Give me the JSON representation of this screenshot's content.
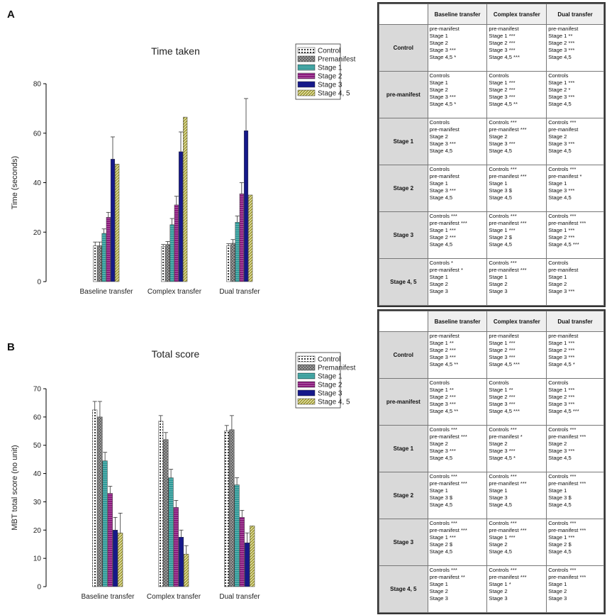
{
  "panels": [
    {
      "label": "A",
      "chart_data": {
        "type": "bar",
        "title": "Time taken",
        "xlabel": "",
        "ylabel": "Time (seconds)",
        "ylim": [
          0,
          80
        ],
        "yticks": [
          0,
          20,
          40,
          60,
          80
        ],
        "categories": [
          "Baseline transfer",
          "Complex transfer",
          "Dual transfer"
        ],
        "series": [
          {
            "name": "Control",
            "values": [
              14.5,
              14.2,
              14.5
            ],
            "errors": [
              1.5,
              0.8,
              0.8
            ],
            "color": "#ffffff",
            "pattern": "dots"
          },
          {
            "name": "Premanifest",
            "values": [
              14.5,
              15.0,
              15.5
            ],
            "errors": [
              1.5,
              1.2,
              1.5
            ],
            "color": "#a9a9a9",
            "pattern": "cross"
          },
          {
            "name": "Stage 1",
            "values": [
              19.5,
              23.0,
              24.0
            ],
            "errors": [
              1.8,
              2.5,
              2.5
            ],
            "color": "#2f9a98",
            "pattern": "hlines"
          },
          {
            "name": "Stage 2",
            "values": [
              26.0,
              31.0,
              35.5
            ],
            "errors": [
              2.0,
              3.5,
              4.5
            ],
            "color": "#8b1a7e",
            "pattern": "hlines"
          },
          {
            "name": "Stage 3",
            "values": [
              49.5,
              52.5,
              61.0
            ],
            "errors": [
              9.0,
              8.0,
              13.0
            ],
            "color": "#16198a",
            "pattern": "none"
          },
          {
            "name": "Stage 4, 5",
            "values": [
              47.5,
              66.5,
              35.0
            ],
            "errors": [
              0,
              0,
              0
            ],
            "color": "#a4a03a",
            "pattern": "diag"
          }
        ]
      },
      "table": {
        "headers": [
          "Baseline transfer",
          "Complex transfer",
          "Dual transfer"
        ],
        "rows": [
          {
            "name": "Control",
            "cells": [
              [
                "pre-manifest",
                "Stage 1",
                "Stage 2",
                "Stage 3 ***",
                "Stage 4,5 *"
              ],
              [
                "pre-manifest",
                "Stage 1 ***",
                "Stage 2 ***",
                "Stage 3 ***",
                "Stage 4,5 ***"
              ],
              [
                "pre-manifest",
                "Stage 1 **",
                "Stage 2 ***",
                "Stage 3 ***",
                "Stage 4,5"
              ]
            ]
          },
          {
            "name": "pre-manifest",
            "cells": [
              [
                "Controls",
                "Stage 1",
                "Stage 2",
                "Stage 3 ***",
                "Stage 4,5 *"
              ],
              [
                "Controls",
                "Stage 1 ***",
                "Stage 2 ***",
                "Stage 3 ***",
                "Stage 4,5 **"
              ],
              [
                "Controls",
                "Stage 1 ***",
                "Stage 2 *",
                "Stage 3 ***",
                "Stage 4,5"
              ]
            ]
          },
          {
            "name": "Stage 1",
            "cells": [
              [
                "Controls",
                "pre-manifest",
                "Stage 2",
                "Stage 3 ***",
                "Stage 4,5"
              ],
              [
                "Controls ***",
                "pre-manifest ***",
                "Stage 2",
                "Stage 3 ***",
                "Stage 4,5"
              ],
              [
                "Controls ***",
                "pre-manifest",
                "Stage 2",
                "Stage 3 ***",
                "Stage 4,5"
              ]
            ]
          },
          {
            "name": "Stage 2",
            "cells": [
              [
                "Controls",
                "pre-manifest",
                "Stage 1",
                "Stage 3 ***",
                "Stage 4,5"
              ],
              [
                "Controls ***",
                "pre-manifest ***",
                "Stage 1",
                "Stage 3 $",
                "Stage 4,5"
              ],
              [
                "Controls ***",
                "pre-manifest *",
                "Stage 1",
                "Stage 3 ***",
                "Stage 4,5"
              ]
            ]
          },
          {
            "name": "Stage 3",
            "cells": [
              [
                "Controls ***",
                "pre-manifest ***",
                "Stage 1 ***",
                "Stage 2 ***",
                "Stage 4,5"
              ],
              [
                "Controls ***",
                "pre-manifest ***",
                "Stage 1 ***",
                "Stage 2 $",
                "Stage 4,5"
              ],
              [
                "Controls ***",
                "pre-manifest ***",
                "Stage 1 ***",
                "Stage 2 ***",
                "Stage 4,5 ***"
              ]
            ]
          },
          {
            "name": "Stage 4, 5",
            "cells": [
              [
                "Controls *",
                "pre-manifest *",
                "Stage 1",
                "Stage 2",
                "Stage 3"
              ],
              [
                "Controls ***",
                "pre-manifest ***",
                "Stage 1",
                "Stage 2",
                "Stage 3"
              ],
              [
                "Controls",
                "pre-manifest",
                "Stage 1",
                "Stage 2",
                "Stage 3 ***"
              ]
            ]
          }
        ]
      }
    },
    {
      "label": "B",
      "chart_data": {
        "type": "bar",
        "title": "Total score",
        "xlabel": "",
        "ylabel": "MBT total score (no unit)",
        "ylim": [
          0,
          70
        ],
        "yticks": [
          0,
          10,
          20,
          30,
          40,
          50,
          60,
          70
        ],
        "categories": [
          "Baseline transfer",
          "Complex transfer",
          "Dual transfer"
        ],
        "series": [
          {
            "name": "Control",
            "values": [
              62.5,
              58.5,
              55.0
            ],
            "errors": [
              3.0,
              2.0,
              2.0
            ],
            "color": "#ffffff",
            "pattern": "dots"
          },
          {
            "name": "Premanifest",
            "values": [
              60.0,
              52.0,
              55.5
            ],
            "errors": [
              5.5,
              2.5,
              5.0
            ],
            "color": "#a9a9a9",
            "pattern": "cross"
          },
          {
            "name": "Stage 1",
            "values": [
              44.5,
              38.5,
              36.0
            ],
            "errors": [
              3.0,
              3.0,
              2.5
            ],
            "color": "#2f9a98",
            "pattern": "hlines"
          },
          {
            "name": "Stage 2",
            "values": [
              33.0,
              28.0,
              24.5
            ],
            "errors": [
              2.5,
              2.5,
              2.5
            ],
            "color": "#8b1a7e",
            "pattern": "hlines"
          },
          {
            "name": "Stage 3",
            "values": [
              20.0,
              17.5,
              15.5
            ],
            "errors": [
              4.5,
              2.5,
              3.5
            ],
            "color": "#16198a",
            "pattern": "none"
          },
          {
            "name": "Stage 4, 5",
            "values": [
              19.0,
              11.5,
              21.5
            ],
            "errors": [
              7.0,
              3.0,
              0
            ],
            "color": "#a4a03a",
            "pattern": "diag"
          }
        ]
      },
      "table": {
        "headers": [
          "Baseline transfer",
          "Complex transfer",
          "Dual transfer"
        ],
        "rows": [
          {
            "name": "Control",
            "cells": [
              [
                "pre-manifest",
                "Stage 1 **",
                "Stage 2 ***",
                "Stage 3 ***",
                "Stage 4,5 **"
              ],
              [
                "pre-manifest",
                "Stage 1 ***",
                "Stage 2 ***",
                "Stage 3 ***",
                "Stage 4,5 ***"
              ],
              [
                "pre-manifest",
                "Stage 1 ***",
                "Stage 2 ***",
                "Stage 3 ***",
                "Stage 4,5 *"
              ]
            ]
          },
          {
            "name": "pre-manifest",
            "cells": [
              [
                "Controls",
                "Stage 1 **",
                "Stage 2 ***",
                "Stage 3 ***",
                "Stage 4,5 **"
              ],
              [
                "Controls",
                "Stage 1 **",
                "Stage 2 ***",
                "Stage 3 ***",
                "Stage 4,5 ***"
              ],
              [
                "Controls",
                "Stage 1 ***",
                "Stage 2 ***",
                "Stage 3 ***",
                "Stage 4,5 ***"
              ]
            ]
          },
          {
            "name": "Stage 1",
            "cells": [
              [
                "Controls ***",
                "pre-manifest ***",
                "Stage 2",
                "Stage 3 ***",
                "Stage 4,5"
              ],
              [
                "Controls ***",
                "pre-manifest *",
                "Stage 2",
                "Stage 3 ***",
                "Stage 4,5 *"
              ],
              [
                "Controls ***",
                "pre-manifest ***",
                "Stage 2",
                "Stage 3 ***",
                "Stage 4,5"
              ]
            ]
          },
          {
            "name": "Stage 2",
            "cells": [
              [
                "Controls ***",
                "pre-manifest ***",
                "Stage 1",
                "Stage 3 $",
                "Stage 4,5"
              ],
              [
                "Controls ***",
                "pre-manifest ***",
                "Stage 1",
                "Stage 3",
                "Stage 4,5"
              ],
              [
                "Controls ***",
                "pre-manifest ***",
                "Stage 1",
                "Stage 3 $",
                "Stage 4,5"
              ]
            ]
          },
          {
            "name": "Stage 3",
            "cells": [
              [
                "Controls ***",
                "pre-manifest ***",
                "Stage 1 ***",
                "Stage 2 $",
                "Stage 4,5"
              ],
              [
                "Controls ***",
                "pre-manifest ***",
                "Stage 1 ***",
                "Stage 2",
                "Stage 4,5"
              ],
              [
                "Controls ***",
                "pre-manifest ***",
                "Stage 1 ***",
                "Stage 2 $",
                "Stage 4,5"
              ]
            ]
          },
          {
            "name": "Stage 4, 5",
            "cells": [
              [
                "Controls ***",
                "pre-manifest **",
                "Stage 1",
                "Stage 2",
                "Stage 3"
              ],
              [
                "Controls ***",
                "pre-manifest ***",
                "Stage 1 *",
                "Stage 2",
                "Stage 3"
              ],
              [
                "Controls ***",
                "pre-manifest ***",
                "Stage 1",
                "Stage 2",
                "Stage 3"
              ]
            ]
          }
        ]
      }
    }
  ]
}
